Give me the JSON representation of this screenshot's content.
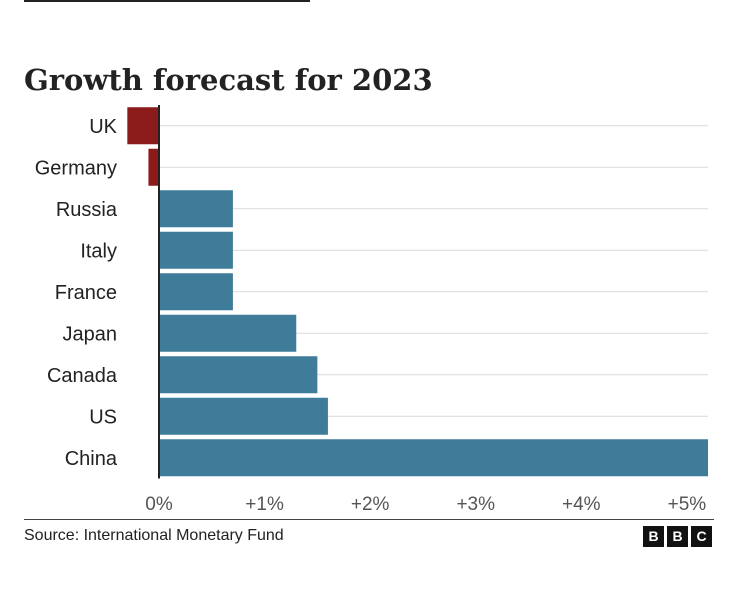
{
  "chart_data": {
    "type": "bar",
    "orientation": "horizontal",
    "title": "Growth forecast for 2023",
    "categories": [
      "UK",
      "Germany",
      "Russia",
      "Italy",
      "France",
      "Japan",
      "Canada",
      "US",
      "China"
    ],
    "values": [
      -0.3,
      -0.1,
      0.7,
      0.7,
      0.7,
      1.3,
      1.5,
      1.6,
      5.2
    ],
    "xlim": [
      -0.3,
      5.2
    ],
    "xticks": [
      0,
      1,
      2,
      3,
      4,
      5
    ],
    "xtick_labels": [
      "0%",
      "+1%",
      "+2%",
      "+3%",
      "+4%",
      "+5%"
    ],
    "xlabel": "",
    "ylabel": "",
    "grid": true,
    "colors": {
      "positive": "#3e7c99",
      "negative": "#8b1a1a",
      "grid": "#d9d9d9",
      "axis": "#222222",
      "text": "#222222"
    }
  },
  "footer": {
    "source": "Source: International Monetary Fund",
    "logo_letters": [
      "B",
      "B",
      "C"
    ]
  }
}
